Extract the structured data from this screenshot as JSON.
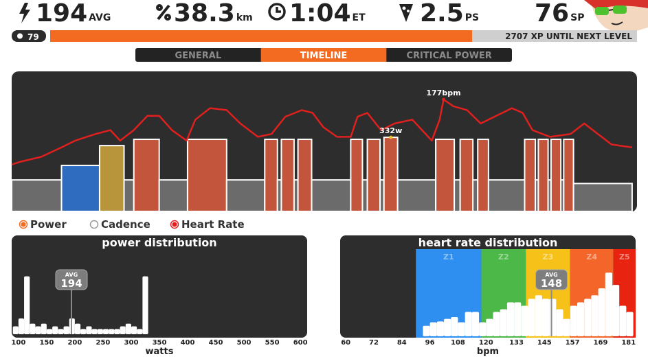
{
  "header": {
    "stats": [
      {
        "value": "194",
        "unit": "AVG"
      },
      {
        "value": "38.3",
        "unit": "km"
      },
      {
        "value": "1:04",
        "unit": "ET"
      },
      {
        "value": "2.5",
        "unit": "PS"
      },
      {
        "value": "76",
        "unit": "SP"
      }
    ]
  },
  "level": {
    "level": "79",
    "xp_text": "2707 XP UNTIL NEXT LEVEL"
  },
  "tabs": {
    "labels": [
      "GENERAL",
      "TIMELINE",
      "CRITICAL POWER"
    ],
    "active": 1
  },
  "chart_data": [
    {
      "type": "timeline",
      "power": {
        "name": "Power",
        "color": "#f26b21",
        "bins": [
          0,
          5.1,
          9.0,
          11.5,
          12.5,
          15.1,
          18.0,
          22.0,
          25.9,
          27.2,
          27.6,
          28.9,
          29.3,
          30.7,
          34.7,
          35.9,
          36.4,
          37.7,
          38.1,
          39.5,
          43.4,
          45.3,
          45.9,
          47.2,
          47.7,
          48.8,
          52.5,
          53.6,
          53.9,
          54.9,
          55.2,
          56.2,
          56.5,
          57.5,
          63.5
        ],
        "values": [
          141,
          206,
          295,
          141,
          323,
          141,
          323,
          141,
          323,
          141,
          323,
          141,
          323,
          141,
          323,
          141,
          323,
          141,
          332,
          141,
          323,
          141,
          323,
          141,
          323,
          141,
          323,
          141,
          323,
          141,
          323,
          141,
          323,
          125
        ],
        "colors": [
          "#6b6b6b",
          "#2f6cc0",
          "#b8953a",
          "#6b6b6b",
          "#c2553b",
          "#6b6b6b",
          "#c2553b",
          "#6b6b6b",
          "#c2553b",
          "#6b6b6b",
          "#c2553b",
          "#6b6b6b",
          "#c2553b",
          "#6b6b6b",
          "#c2553b",
          "#6b6b6b",
          "#c2553b",
          "#6b6b6b",
          "#c2553b",
          "#6b6b6b",
          "#c2553b",
          "#6b6b6b",
          "#c2553b",
          "#6b6b6b",
          "#c2553b",
          "#6b6b6b",
          "#c2553b",
          "#6b6b6b",
          "#c2553b",
          "#6b6b6b",
          "#c2553b",
          "#6b6b6b",
          "#c2553b",
          "#6b6b6b"
        ]
      },
      "cadence": {
        "name": "Cadence"
      },
      "heart_rate": {
        "name": "Heart Rate",
        "color": "#e0201e",
        "axis": "y2",
        "x": [
          0,
          0.9,
          3.0,
          5.1,
          6.5,
          8.6,
          10.1,
          11.1,
          12.5,
          13.9,
          15.1,
          16.4,
          17.9,
          18.8,
          20.3,
          22.0,
          23.4,
          25.2,
          26.6,
          28.0,
          29.7,
          30.8,
          31.9,
          33.3,
          34.7,
          35.4,
          36.4,
          37.8,
          39.2,
          41.0,
          42.0,
          43.0,
          43.8,
          44.2,
          45.2,
          46.6,
          48.0,
          49.4,
          51.2,
          52.3,
          53.3,
          55.1,
          57.2,
          58.6,
          60.0,
          61.4,
          63.5
        ],
        "values": [
          109,
          112,
          117,
          127,
          134,
          141,
          145,
          134,
          145,
          160,
          160,
          145,
          134,
          156,
          168,
          166,
          152,
          138,
          141,
          159,
          166,
          163,
          148,
          138,
          138,
          159,
          163,
          145,
          152,
          156,
          145,
          134,
          156,
          177,
          170,
          166,
          152,
          159,
          168,
          163,
          145,
          138,
          141,
          152,
          141,
          130,
          127
        ]
      },
      "annotations": [
        {
          "value": 177,
          "label": "177bpm",
          "x": 44.2,
          "axis": "y2"
        },
        {
          "value": 332,
          "label": "332w",
          "x": 38.8
        }
      ],
      "xlim": [
        0,
        64
      ],
      "ylim": [
        0,
        600
      ],
      "y2lim": [
        60,
        200
      ]
    },
    {
      "type": "histogram",
      "title": "power distribution",
      "xlabel": "watts",
      "color": "#ffffff",
      "bins": [
        90,
        100,
        110,
        120,
        130,
        140,
        150,
        160,
        170,
        180,
        190,
        200,
        210,
        220,
        230,
        240,
        250,
        260,
        270,
        280,
        290,
        300,
        310,
        320,
        330
      ],
      "values": [
        3,
        6,
        22,
        4,
        3,
        4,
        2,
        3,
        2,
        3,
        6,
        4,
        2,
        3,
        2,
        2,
        2,
        2,
        2,
        3,
        4,
        3,
        2,
        22
      ],
      "xlim": [
        88,
        612
      ],
      "ylim": [
        0,
        30
      ],
      "xticks": [
        100,
        150,
        200,
        250,
        300,
        350,
        400,
        450,
        500,
        550,
        600
      ],
      "avg": {
        "label": "AVG",
        "value": 194
      }
    },
    {
      "type": "histogram",
      "title": "heart rate distribution",
      "xlabel": "bpm",
      "color": "#ffffff",
      "bins": [
        90,
        93,
        96,
        99,
        102,
        105,
        108,
        111,
        114,
        117,
        120,
        123,
        126,
        129,
        132,
        135,
        138,
        141,
        144,
        147,
        150,
        153,
        156,
        159,
        162,
        165,
        168,
        171,
        174,
        177,
        180,
        183
      ],
      "values": [
        0,
        1.2,
        1.6,
        1.7,
        2,
        2.2,
        1.6,
        2.8,
        2.8,
        1.6,
        2,
        2.8,
        3.1,
        3.9,
        3.9,
        3.5,
        4.3,
        4.7,
        4.3,
        4.3,
        3.1,
        2,
        3.5,
        3.9,
        4.3,
        4.7,
        5.5,
        7.3,
        5.9,
        3.5,
        2.8
      ],
      "xlim": [
        57.6,
        184
      ],
      "ylim": [
        0,
        10
      ],
      "xticks": [
        60,
        72,
        84,
        96,
        108,
        120,
        133,
        145,
        157,
        169,
        181
      ],
      "zones": {
        "names": [
          "Z1",
          "Z2",
          "Z3",
          "Z4",
          "Z5"
        ],
        "bounds": [
          90,
          118,
          137,
          156,
          174.5,
          184
        ],
        "colors": [
          "#2f8ff0",
          "#4cb848",
          "#f6c21a",
          "#f4652a",
          "#e8230f"
        ]
      },
      "avg": {
        "label": "AVG",
        "value": 148
      }
    }
  ]
}
